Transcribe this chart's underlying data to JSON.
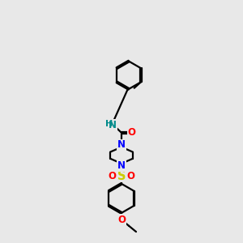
{
  "bg_color": "#e8e8e8",
  "bond_color": "#000000",
  "bond_width": 1.6,
  "atom_colors": {
    "N": "#0000FF",
    "NH": "#008B8B",
    "O": "#FF0000",
    "S": "#CCCC00",
    "C": "#000000"
  },
  "font_size": 8.5,
  "fig_bg": "#e8e8e8",
  "scale": 1.0
}
